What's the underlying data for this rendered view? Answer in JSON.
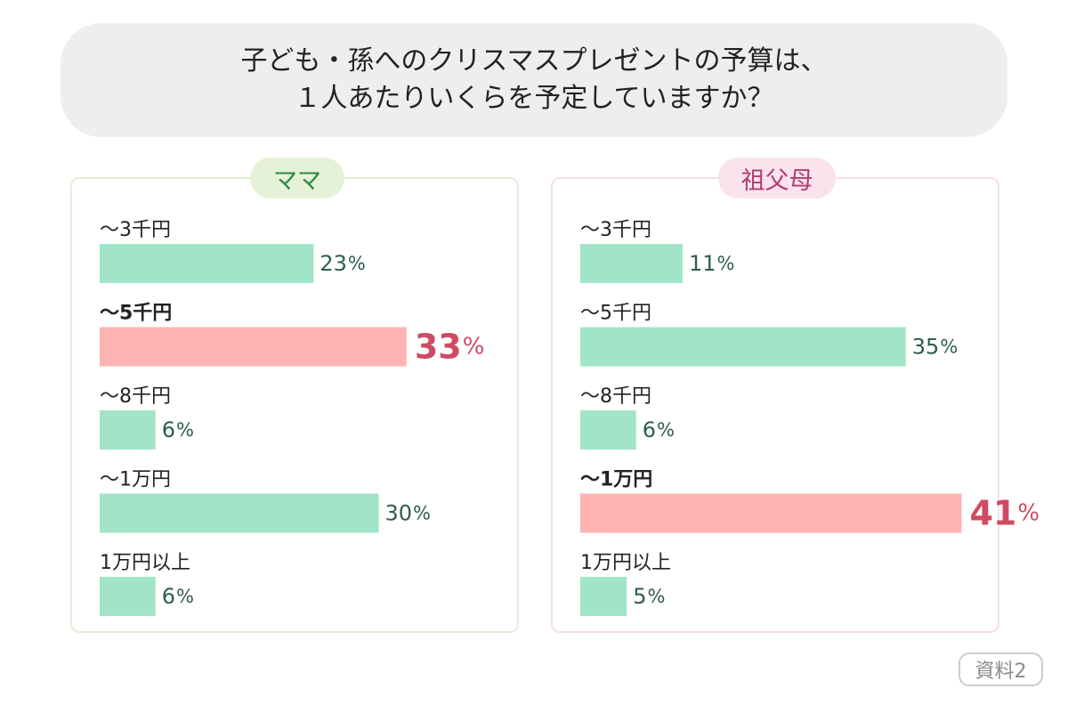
{
  "title": {
    "line1": "子ども・孫へのクリスマスプレゼントの予算は、",
    "line2": "１人あたりいくらを予定していますか？"
  },
  "badge": "資料2",
  "colors": {
    "bar": "#a2e4c7",
    "highlight_bar": "#ffb3b3",
    "value_text": "#2e5e49",
    "highlight_text": "#cf4a63",
    "category_text": "#222222"
  },
  "chart_data": [
    {
      "type": "bar",
      "orientation": "horizontal",
      "title": "ママ",
      "categories": [
        "〜3千円",
        "〜5千円",
        "〜8千円",
        "〜1万円",
        "1万円以上"
      ],
      "values": [
        23,
        33,
        6,
        30,
        6
      ],
      "value_labels": [
        "23",
        "33",
        "6",
        "30",
        "6"
      ],
      "unit": "%",
      "highlight_index": 1,
      "xlim": [
        0,
        50
      ]
    },
    {
      "type": "bar",
      "orientation": "horizontal",
      "title": "祖父母",
      "categories": [
        "〜3千円",
        "〜5千円",
        "〜8千円",
        "〜1万円",
        "1万円以上"
      ],
      "values": [
        11,
        35,
        6,
        41,
        5
      ],
      "value_labels": [
        "11",
        "35",
        "6",
        "41",
        "5"
      ],
      "unit": "%",
      "highlight_index": 3,
      "xlim": [
        0,
        50
      ]
    }
  ]
}
